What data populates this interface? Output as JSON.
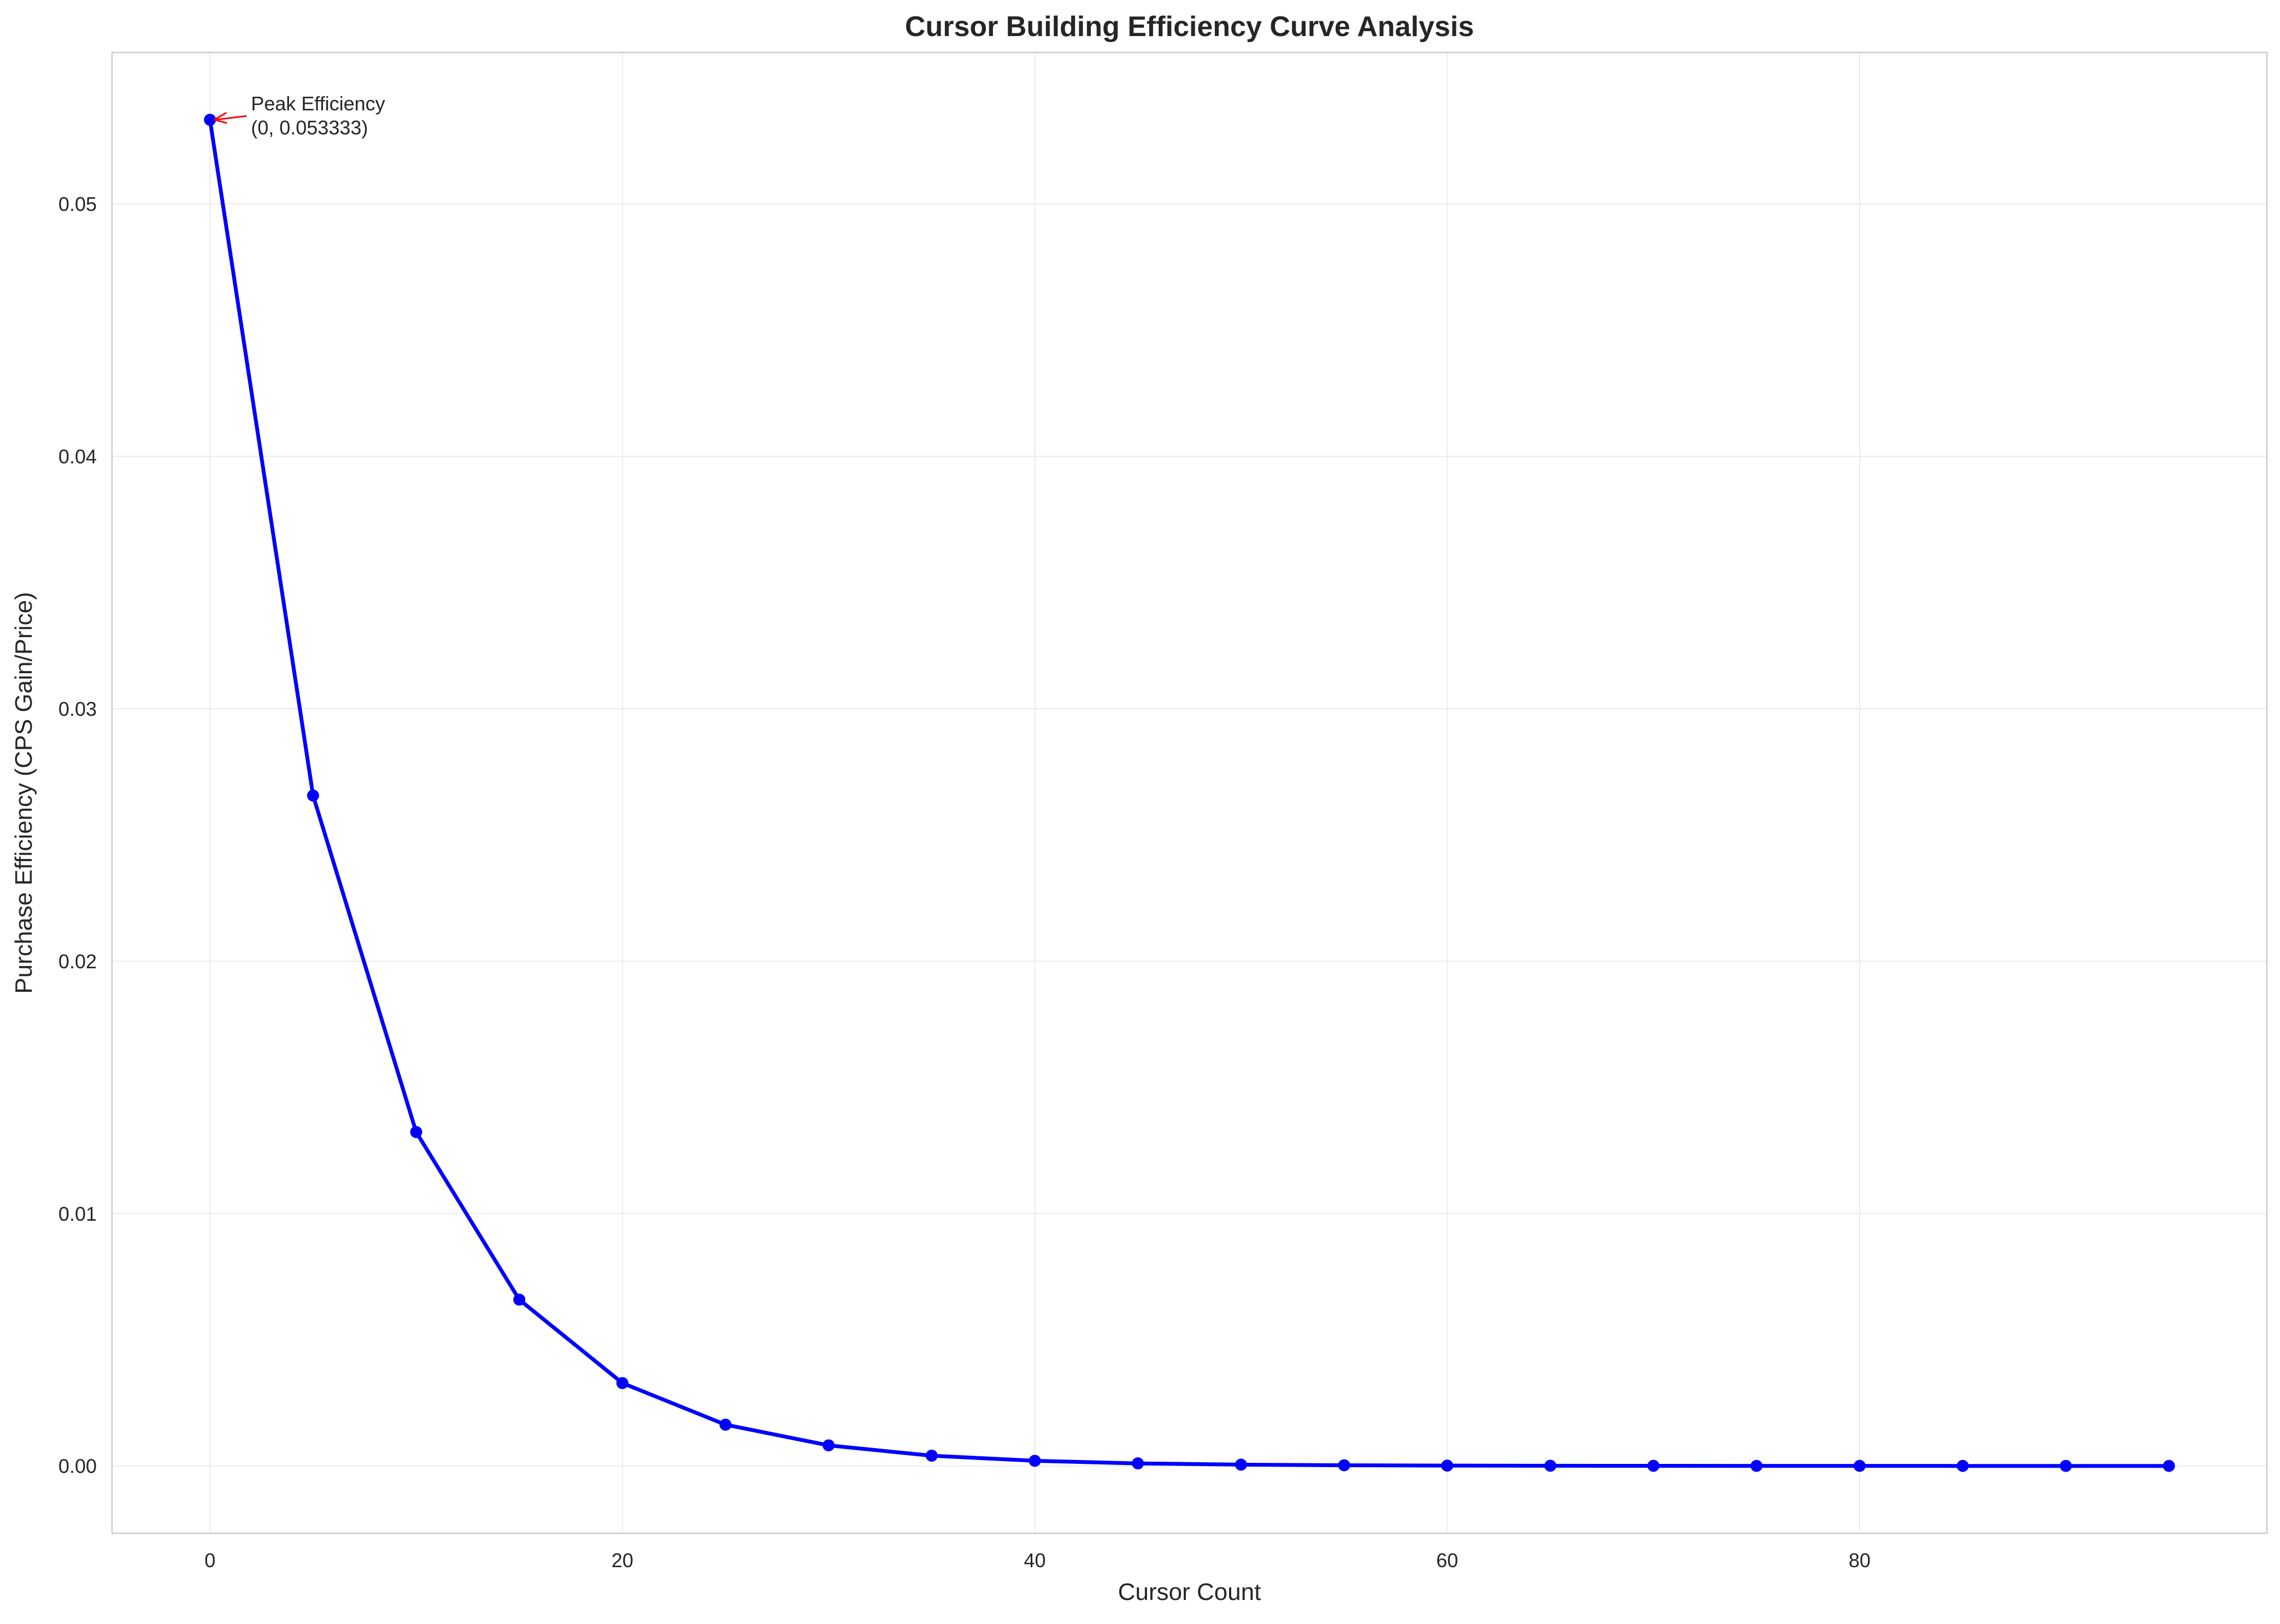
{
  "chart_data": {
    "type": "line",
    "title": "Cursor Building Efficiency Curve Analysis",
    "xlabel": "Cursor Count",
    "ylabel": "Purchase Efficiency (CPS Gain/Price)",
    "x": [
      0,
      5,
      10,
      15,
      20,
      25,
      30,
      35,
      40,
      45,
      50,
      55,
      60,
      65,
      70,
      75,
      80,
      85,
      90,
      95
    ],
    "series": [
      {
        "name": "",
        "color": "#0000ff",
        "marker": "circle",
        "values": [
          0.053333,
          0.02656,
          0.013227,
          0.006587,
          0.003281,
          0.001634,
          0.000814,
          0.000405,
          0.000202,
          0.0001,
          5e-05,
          2.5e-05,
          1.2e-05,
          6e-06,
          3e-06,
          1.5e-06,
          8e-07,
          4e-07,
          2e-07,
          1e-07
        ]
      }
    ],
    "xlim": [
      -4.75,
      99.75
    ],
    "ylim": [
      -0.00267,
      0.056
    ],
    "xticks": [
      0,
      20,
      40,
      60,
      80
    ],
    "xtick_labels": [
      "0",
      "20",
      "40",
      "60",
      "80"
    ],
    "yticks": [
      0.0,
      0.01,
      0.02,
      0.03,
      0.04,
      0.05
    ],
    "ytick_labels": [
      "0.00",
      "0.01",
      "0.02",
      "0.03",
      "0.04",
      "0.05"
    ],
    "grid": true,
    "legend": "none",
    "annotation": {
      "text_line1": "Peak Efficiency",
      "text_line2": "(0, 0.053333)",
      "point_x": 0,
      "point_y": 0.053333,
      "arrow_color": "#ff0000"
    }
  }
}
